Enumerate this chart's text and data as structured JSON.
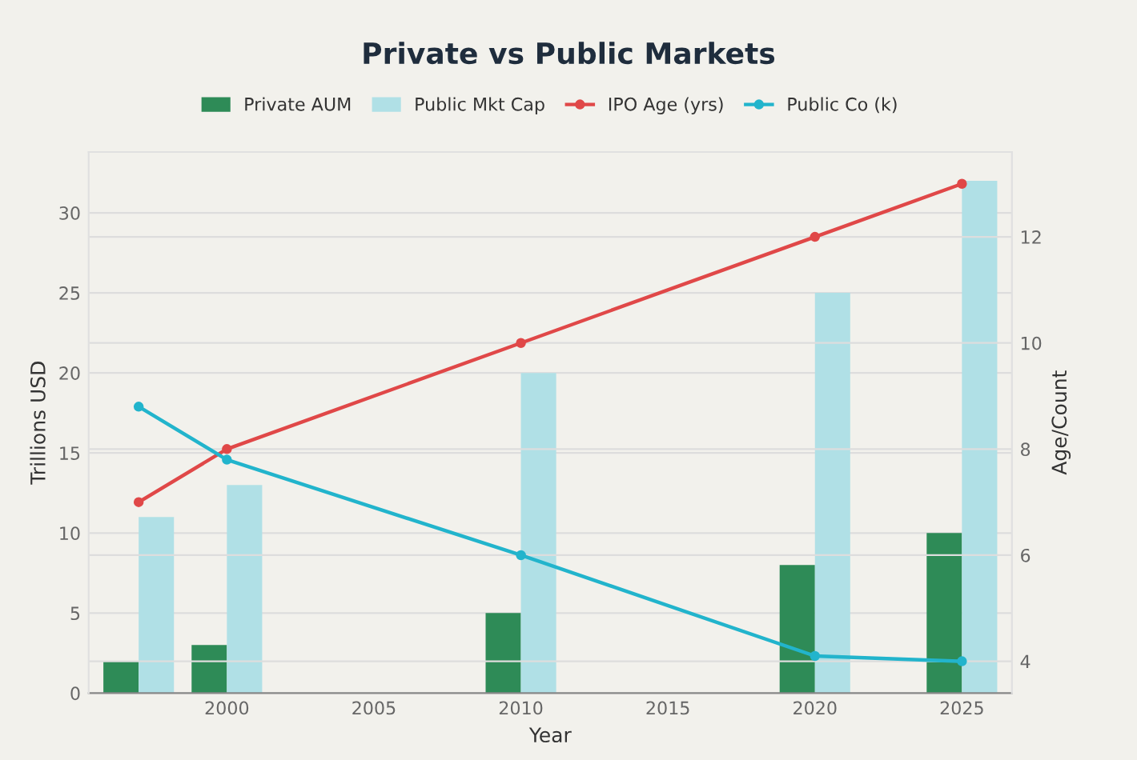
{
  "chart_data": {
    "type": "bar",
    "title": "Private vs Public Markets",
    "xlabel": "Year",
    "ylabel": "Trillions USD",
    "y2label": "Age/Count",
    "x": [
      1997,
      2000,
      2010,
      2020,
      2025
    ],
    "series": [
      {
        "name": "Private AUM",
        "color": "#2e8b57",
        "values": [
          2,
          3,
          5,
          8,
          10
        ]
      },
      {
        "name": "Public Mkt Cap",
        "color": "#b0e0e6",
        "values": [
          11,
          13,
          20,
          25,
          32
        ]
      },
      {
        "name": "IPO Age (yrs)",
        "type": "line",
        "axis": "y2",
        "color": "#e04848",
        "values": [
          7.0,
          8.0,
          10.0,
          12.0,
          13.0
        ]
      },
      {
        "name": "Public Co (k)",
        "type": "line",
        "axis": "y2",
        "color": "#22b4cc",
        "values": [
          8.8,
          7.8,
          6.0,
          4.1,
          4.0
        ]
      }
    ],
    "xlim": [
      1995.3,
      2026.7
    ],
    "xticks": [
      2000,
      2005,
      2010,
      2015,
      2020,
      2025
    ],
    "ylim": [
      0,
      33.8
    ],
    "yticks": [
      0,
      5,
      10,
      15,
      20,
      25,
      30
    ],
    "y2lim": [
      3.4,
      13.6
    ],
    "y2ticks": [
      4,
      6,
      8,
      10,
      12
    ],
    "grid": true,
    "legend": "top",
    "marker": "circle",
    "line_style": "solid"
  }
}
